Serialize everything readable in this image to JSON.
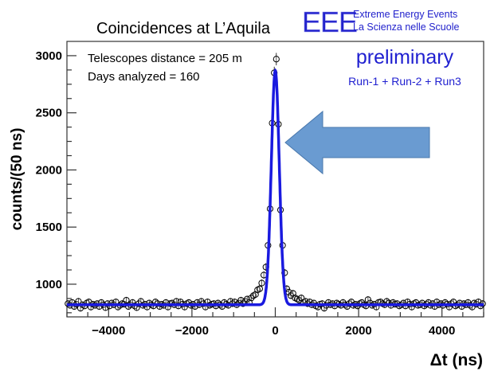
{
  "chart_data": {
    "type": "scatter",
    "title": "Coincidences at L’Aquila",
    "xlabel": "Δt (ns)",
    "ylabel": "counts/(50 ns)",
    "xlim": [
      -5000,
      5000
    ],
    "ylim": [
      714,
      3125
    ],
    "xticks": [
      -4000,
      -2000,
      0,
      2000,
      4000
    ],
    "yticks": [
      1000,
      1500,
      2000,
      2500,
      3000
    ],
    "xtick_labels": [
      "−4000",
      "−2000",
      "0",
      "2000",
      "4000"
    ],
    "ytick_labels": [
      "1000",
      "1500",
      "2000",
      "2500",
      "3000"
    ],
    "bin_width": 50,
    "x_start": -4975,
    "values": [
      830,
      815,
      840,
      805,
      825,
      850,
      790,
      820,
      810,
      835,
      845,
      800,
      825,
      815,
      830,
      805,
      840,
      820,
      795,
      830,
      810,
      835,
      820,
      845,
      800,
      815,
      830,
      825,
      860,
      805,
      820,
      840,
      810,
      795,
      830,
      850,
      815,
      825,
      800,
      835,
      820,
      810,
      845,
      830,
      805,
      825,
      815,
      840,
      800,
      830,
      835,
      820,
      850,
      810,
      845,
      825,
      800,
      830,
      840,
      815,
      825,
      805,
      840,
      820,
      850,
      830,
      800,
      845,
      815,
      825,
      830,
      810,
      835,
      820,
      805,
      840,
      825,
      815,
      850,
      830,
      845,
      820,
      835,
      860,
      830,
      850,
      870,
      840,
      880,
      900,
      910,
      950,
      960,
      1010,
      1080,
      1150,
      1340,
      1660,
      2410,
      2850,
      2970,
      2400,
      1650,
      1340,
      1100,
      960,
      930,
      900,
      920,
      880,
      870,
      860,
      880,
      840,
      850,
      830,
      845,
      820,
      835,
      810,
      800,
      825,
      830,
      790,
      815,
      840,
      820,
      830,
      810,
      835,
      825,
      815,
      840,
      820,
      805,
      830,
      845,
      815,
      825,
      810,
      830,
      840,
      820,
      810,
      865,
      835,
      815,
      825,
      800,
      840,
      845,
      830,
      820,
      850,
      835,
      815,
      840,
      825,
      830,
      810,
      820,
      835,
      810,
      845,
      825,
      800,
      830,
      840,
      815,
      820,
      835,
      810,
      825,
      840,
      815,
      830,
      805,
      845,
      820,
      830,
      815,
      840,
      825,
      800,
      830,
      845,
      810,
      820,
      835,
      805,
      830,
      820,
      840,
      815,
      800,
      835,
      825,
      845,
      810,
      830
    ],
    "fit": {
      "model": "gaussian + constant",
      "constant": 820,
      "amplitude": 2050,
      "mean": 0,
      "sigma": 95,
      "color": "#1a1adf"
    },
    "marker": "open-circle",
    "grid": false,
    "annotations": {
      "line1": "Telescopes distance = 205 m",
      "line2": "Days analyzed = 160",
      "preliminary": "preliminary",
      "runs": "Run-1 + Run-2 + Run3",
      "arrow": "left-pointing arrow at peak"
    }
  },
  "logo": {
    "letters": "EEE",
    "line1": "Extreme Energy Events",
    "line2": "La Scienza nelle Scuole"
  },
  "colors": {
    "fit": "#1a1adf",
    "text_blue": "#1f1fd0",
    "arrow_fill": "#6a9bd1",
    "arrow_edge": "#4a78ad"
  }
}
